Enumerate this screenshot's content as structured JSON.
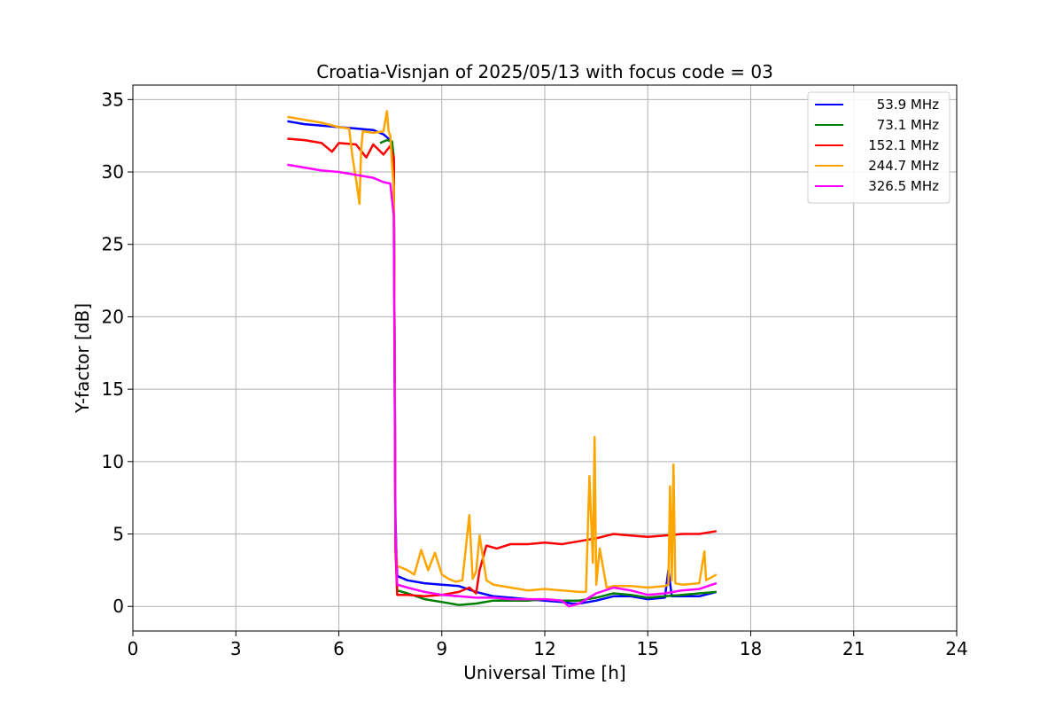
{
  "chart_data": {
    "type": "line",
    "title": "Croatia-Visnjan of 2025/05/13 with focus code = 03",
    "xlabel": "Universal Time [h]",
    "ylabel": "Y-factor [dB]",
    "xlim": [
      0,
      24
    ],
    "ylim": [
      -1.7,
      36
    ],
    "xticks": [
      0,
      3,
      6,
      9,
      12,
      15,
      18,
      21,
      24
    ],
    "yticks": [
      0,
      5,
      10,
      15,
      20,
      25,
      30,
      35
    ],
    "grid": true,
    "legend_position": "top-right",
    "series": [
      {
        "name": "53.9 MHz",
        "color": "#0000ff",
        "points": [
          [
            4.5,
            33.5
          ],
          [
            5,
            33.3
          ],
          [
            5.5,
            33.2
          ],
          [
            6,
            33.1
          ],
          [
            6.5,
            33.0
          ],
          [
            7,
            32.9
          ],
          [
            7.3,
            32.6
          ],
          [
            7.5,
            32.2
          ],
          [
            7.6,
            31.0
          ],
          [
            7.62,
            20.0
          ],
          [
            7.65,
            6.0
          ],
          [
            7.7,
            2.1
          ],
          [
            8,
            1.8
          ],
          [
            8.5,
            1.6
          ],
          [
            9,
            1.5
          ],
          [
            9.5,
            1.4
          ],
          [
            10,
            1.0
          ],
          [
            10.5,
            0.7
          ],
          [
            11,
            0.6
          ],
          [
            11.5,
            0.5
          ],
          [
            12,
            0.4
          ],
          [
            12.5,
            0.3
          ],
          [
            12.8,
            0.2
          ],
          [
            13,
            0.2
          ],
          [
            13.5,
            0.4
          ],
          [
            14,
            0.7
          ],
          [
            14.5,
            0.7
          ],
          [
            15,
            0.5
          ],
          [
            15.5,
            0.6
          ],
          [
            15.6,
            2.5
          ],
          [
            15.7,
            0.7
          ],
          [
            16,
            0.7
          ],
          [
            16.5,
            0.7
          ],
          [
            17,
            1.0
          ]
        ]
      },
      {
        "name": "73.1 MHz",
        "color": "#008000",
        "points": [
          [
            7.2,
            32.0
          ],
          [
            7.4,
            32.2
          ],
          [
            7.55,
            32.1
          ],
          [
            7.6,
            31.0
          ],
          [
            7.62,
            20.0
          ],
          [
            7.65,
            5.0
          ],
          [
            7.7,
            1.1
          ],
          [
            8,
            0.9
          ],
          [
            8.5,
            0.5
          ],
          [
            9,
            0.3
          ],
          [
            9.5,
            0.1
          ],
          [
            10,
            0.2
          ],
          [
            10.5,
            0.4
          ],
          [
            11,
            0.4
          ],
          [
            11.5,
            0.4
          ],
          [
            12,
            0.5
          ],
          [
            12.5,
            0.4
          ],
          [
            13,
            0.4
          ],
          [
            13.5,
            0.6
          ],
          [
            14,
            0.9
          ],
          [
            14.5,
            0.8
          ],
          [
            15,
            0.6
          ],
          [
            15.5,
            0.7
          ],
          [
            16,
            0.8
          ],
          [
            16.5,
            0.9
          ],
          [
            17,
            1.0
          ]
        ]
      },
      {
        "name": "152.1 MHz",
        "color": "#ff0000",
        "points": [
          [
            4.5,
            32.3
          ],
          [
            5,
            32.2
          ],
          [
            5.5,
            32.0
          ],
          [
            5.8,
            31.4
          ],
          [
            6,
            32.0
          ],
          [
            6.5,
            31.9
          ],
          [
            6.8,
            31.0
          ],
          [
            7,
            31.9
          ],
          [
            7.3,
            31.2
          ],
          [
            7.5,
            31.8
          ],
          [
            7.6,
            31.0
          ],
          [
            7.62,
            20.0
          ],
          [
            7.65,
            4.0
          ],
          [
            7.7,
            0.8
          ],
          [
            8,
            0.8
          ],
          [
            8.5,
            0.7
          ],
          [
            9,
            0.8
          ],
          [
            9.5,
            1.0
          ],
          [
            9.8,
            1.3
          ],
          [
            10,
            0.9
          ],
          [
            10.1,
            2.5
          ],
          [
            10.3,
            4.2
          ],
          [
            10.6,
            4.0
          ],
          [
            11,
            4.3
          ],
          [
            11.5,
            4.3
          ],
          [
            12,
            4.4
          ],
          [
            12.5,
            4.3
          ],
          [
            13,
            4.5
          ],
          [
            13.5,
            4.7
          ],
          [
            14,
            5.0
          ],
          [
            14.5,
            4.9
          ],
          [
            15,
            4.8
          ],
          [
            15.5,
            4.9
          ],
          [
            16,
            5.0
          ],
          [
            16.5,
            5.0
          ],
          [
            17,
            5.2
          ]
        ]
      },
      {
        "name": "244.7 MHz",
        "color": "#ffa500",
        "points": [
          [
            4.5,
            33.8
          ],
          [
            5,
            33.6
          ],
          [
            5.5,
            33.4
          ],
          [
            6,
            33.1
          ],
          [
            6.3,
            33.0
          ],
          [
            6.4,
            31.0
          ],
          [
            6.5,
            29.5
          ],
          [
            6.6,
            27.8
          ],
          [
            6.65,
            31.5
          ],
          [
            6.7,
            32.8
          ],
          [
            7,
            32.7
          ],
          [
            7.3,
            32.8
          ],
          [
            7.4,
            34.2
          ],
          [
            7.45,
            32.8
          ],
          [
            7.5,
            32.5
          ],
          [
            7.55,
            30.5
          ],
          [
            7.6,
            29.0
          ],
          [
            7.62,
            20.0
          ],
          [
            7.65,
            5.0
          ],
          [
            7.7,
            2.8
          ],
          [
            8,
            2.5
          ],
          [
            8.2,
            2.2
          ],
          [
            8.4,
            3.9
          ],
          [
            8.6,
            2.5
          ],
          [
            8.8,
            3.7
          ],
          [
            9,
            2.2
          ],
          [
            9.2,
            1.9
          ],
          [
            9.4,
            1.7
          ],
          [
            9.6,
            1.8
          ],
          [
            9.8,
            6.3
          ],
          [
            9.9,
            1.9
          ],
          [
            10,
            2.4
          ],
          [
            10.1,
            4.9
          ],
          [
            10.3,
            1.8
          ],
          [
            10.5,
            1.5
          ],
          [
            11,
            1.3
          ],
          [
            11.5,
            1.1
          ],
          [
            12,
            1.2
          ],
          [
            12.5,
            1.1
          ],
          [
            13,
            1.0
          ],
          [
            13.2,
            1.0
          ],
          [
            13.3,
            9.0
          ],
          [
            13.4,
            3.0
          ],
          [
            13.45,
            11.7
          ],
          [
            13.5,
            1.5
          ],
          [
            13.6,
            4.0
          ],
          [
            13.8,
            1.3
          ],
          [
            14,
            1.4
          ],
          [
            14.5,
            1.4
          ],
          [
            15,
            1.3
          ],
          [
            15.5,
            1.4
          ],
          [
            15.6,
            1.5
          ],
          [
            15.65,
            8.3
          ],
          [
            15.7,
            1.8
          ],
          [
            15.75,
            9.8
          ],
          [
            15.8,
            1.6
          ],
          [
            16,
            1.5
          ],
          [
            16.5,
            1.6
          ],
          [
            16.65,
            3.8
          ],
          [
            16.7,
            1.8
          ],
          [
            17,
            2.2
          ]
        ]
      },
      {
        "name": "326.5 MHz",
        "color": "#ff00ff",
        "points": [
          [
            4.5,
            30.5
          ],
          [
            5,
            30.3
          ],
          [
            5.5,
            30.1
          ],
          [
            6,
            30.0
          ],
          [
            6.5,
            29.8
          ],
          [
            7,
            29.6
          ],
          [
            7.3,
            29.3
          ],
          [
            7.5,
            29.2
          ],
          [
            7.6,
            27.0
          ],
          [
            7.62,
            18.0
          ],
          [
            7.65,
            5.0
          ],
          [
            7.7,
            1.5
          ],
          [
            8,
            1.3
          ],
          [
            8.5,
            1.0
          ],
          [
            9,
            0.8
          ],
          [
            9.5,
            0.7
          ],
          [
            10,
            0.6
          ],
          [
            10.5,
            0.6
          ],
          [
            11,
            0.5
          ],
          [
            11.5,
            0.5
          ],
          [
            12,
            0.5
          ],
          [
            12.5,
            0.4
          ],
          [
            12.7,
            0.0
          ],
          [
            13,
            0.2
          ],
          [
            13.5,
            0.9
          ],
          [
            14,
            1.3
          ],
          [
            14.5,
            1.1
          ],
          [
            15,
            0.8
          ],
          [
            15.5,
            0.9
          ],
          [
            16,
            1.1
          ],
          [
            16.5,
            1.2
          ],
          [
            17,
            1.6
          ]
        ]
      }
    ]
  }
}
